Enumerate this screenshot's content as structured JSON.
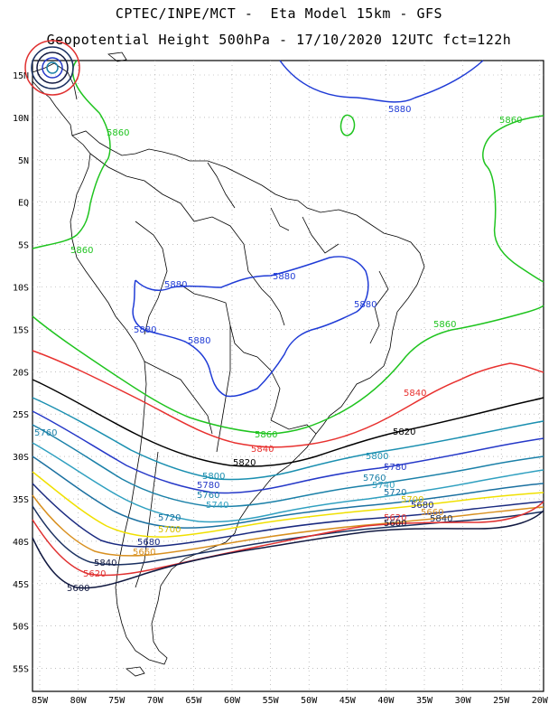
{
  "header": {
    "line1": "CPTEC/INPE/MCT -  Eta Model 15km - GFS",
    "line2": "Geopotential Height 500hPa - 17/10/2020 12UTC fct=122h"
  },
  "axes": {
    "lat_labels": [
      "15N",
      "10N",
      "5N",
      "EQ",
      "5S",
      "10S",
      "15S",
      "20S",
      "25S",
      "30S",
      "35S",
      "40S",
      "45S",
      "50S",
      "55S"
    ],
    "lon_labels": [
      "85W",
      "80W",
      "75W",
      "70W",
      "65W",
      "60W",
      "55W",
      "50W",
      "45W",
      "40W",
      "35W",
      "30W",
      "25W",
      "20W"
    ]
  },
  "contours": [
    {
      "value": "5880",
      "color": "#1f3bd6"
    },
    {
      "value": "5860",
      "color": "#1fc41f"
    },
    {
      "value": "5840",
      "color": "#e8312f"
    },
    {
      "value": "5820",
      "color": "#000000"
    },
    {
      "value": "5800",
      "color": "#1a8fb0"
    },
    {
      "value": "5780",
      "color": "#2538c8"
    },
    {
      "value": "5760",
      "color": "#1a80a8"
    },
    {
      "value": "5740",
      "color": "#30a0c0"
    },
    {
      "value": "5720",
      "color": "#1a70a0"
    },
    {
      "value": "5700",
      "color": "#f0e000"
    },
    {
      "value": "5680",
      "color": "#1a2a80"
    },
    {
      "value": "5660",
      "color": "#d89020"
    },
    {
      "value": "5640",
      "color": "#1a3060"
    },
    {
      "value": "5620",
      "color": "#e03030"
    },
    {
      "value": "5600",
      "color": "#101840"
    }
  ],
  "contour_labels": {
    "l5880a": "5880",
    "l5880b": "5880",
    "l5880c": "5880",
    "l5880d": "5880",
    "l5880e": "5880",
    "l5880f": "5880",
    "l5860a": "5860",
    "l5860b": "5860",
    "l5860c": "5860",
    "l5860d": "5860",
    "l5860e": "5860",
    "l5840a": "5840",
    "l5840b": "5840",
    "l5840c": "5840",
    "l5840d": "5840",
    "l5820a": "5820",
    "l5820b": "5820",
    "l5800a": "5800",
    "l5800b": "5800",
    "l5780a": "5780",
    "l5780b": "5780",
    "l5760a": "5760",
    "l5760b": "5760",
    "l5760c": "5760",
    "l5740a": "5740",
    "l5740b": "5740",
    "l5720a": "5720",
    "l5720b": "5720",
    "l5700a": "5700",
    "l5700b": "5700",
    "l5680a": "5680",
    "l5680b": "5680",
    "l5660a": "5660",
    "l5660b": "5660",
    "l5620a": "5620",
    "l5620b": "5620",
    "l5600a": "5600",
    "l5600b": "5600"
  }
}
